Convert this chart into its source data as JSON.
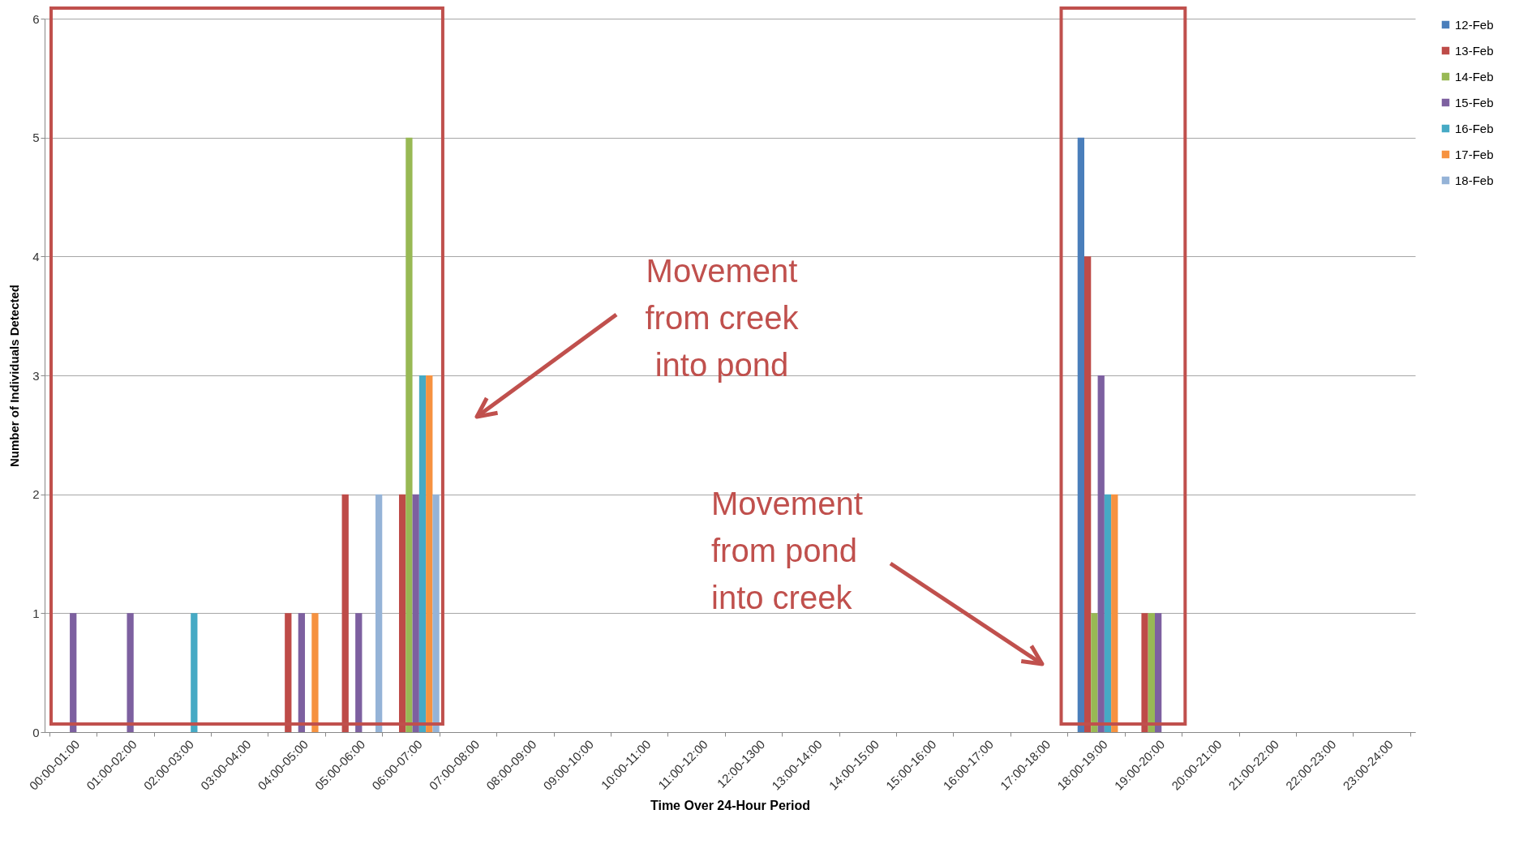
{
  "chart_data": {
    "type": "bar",
    "xlabel": "Time Over 24-Hour Period",
    "ylabel": "Number of Individuals Detected",
    "categories": [
      "00:00-01:00",
      "01:00-02:00",
      "02:00-03:00",
      "03:00-04:00",
      "04:00-05:00",
      "05:00-06:00",
      "06:00-07:00",
      "07:00-08:00",
      "08:00-09:00",
      "09:00-10:00",
      "10:00-11:00",
      "11:00-12:00",
      "12:00-1300",
      "13:00-14:00",
      "14:00-15:00",
      "15:00-16:00",
      "16:00-17:00",
      "17:00-18:00",
      "18:00-19:00",
      "19:00-20:00",
      "20:00-21:00",
      "21:00-22:00",
      "22:00-23:00",
      "23:00-24:00"
    ],
    "series": [
      {
        "name": "12-Feb",
        "color": "#4a7ebb",
        "values": [
          0,
          0,
          0,
          0,
          0,
          0,
          0,
          0,
          0,
          0,
          0,
          0,
          0,
          0,
          0,
          0,
          0,
          0,
          5,
          0,
          0,
          0,
          0,
          0
        ]
      },
      {
        "name": "13-Feb",
        "color": "#be4b48",
        "values": [
          0,
          0,
          0,
          0,
          1,
          2,
          2,
          0,
          0,
          0,
          0,
          0,
          0,
          0,
          0,
          0,
          0,
          0,
          4,
          1,
          0,
          0,
          0,
          0
        ]
      },
      {
        "name": "14-Feb",
        "color": "#98b954",
        "values": [
          0,
          0,
          0,
          0,
          0,
          0,
          5,
          0,
          0,
          0,
          0,
          0,
          0,
          0,
          0,
          0,
          0,
          0,
          1,
          1,
          0,
          0,
          0,
          0
        ]
      },
      {
        "name": "15-Feb",
        "color": "#7d60a0",
        "values": [
          1,
          1,
          0,
          0,
          1,
          1,
          2,
          0,
          0,
          0,
          0,
          0,
          0,
          0,
          0,
          0,
          0,
          0,
          3,
          1,
          0,
          0,
          0,
          0
        ]
      },
      {
        "name": "16-Feb",
        "color": "#46aac5",
        "values": [
          0,
          0,
          1,
          0,
          0,
          0,
          3,
          0,
          0,
          0,
          0,
          0,
          0,
          0,
          0,
          0,
          0,
          0,
          2,
          0,
          0,
          0,
          0,
          0
        ]
      },
      {
        "name": "17-Feb",
        "color": "#f69240",
        "values": [
          0,
          0,
          0,
          0,
          1,
          0,
          3,
          0,
          0,
          0,
          0,
          0,
          0,
          0,
          0,
          0,
          0,
          0,
          2,
          0,
          0,
          0,
          0,
          0
        ]
      },
      {
        "name": "18-Feb",
        "color": "#95b3d7",
        "values": [
          0,
          0,
          0,
          0,
          0,
          2,
          2,
          0,
          0,
          0,
          0,
          0,
          0,
          0,
          0,
          0,
          0,
          0,
          0,
          0,
          0,
          0,
          0,
          0
        ]
      }
    ],
    "ylim": [
      0,
      6
    ],
    "yticks": [
      0,
      1,
      2,
      3,
      4,
      5,
      6
    ],
    "grid": "y",
    "legend": "right",
    "annotations": [
      "Movement from creek into pond",
      "Movement from pond into creek"
    ]
  }
}
